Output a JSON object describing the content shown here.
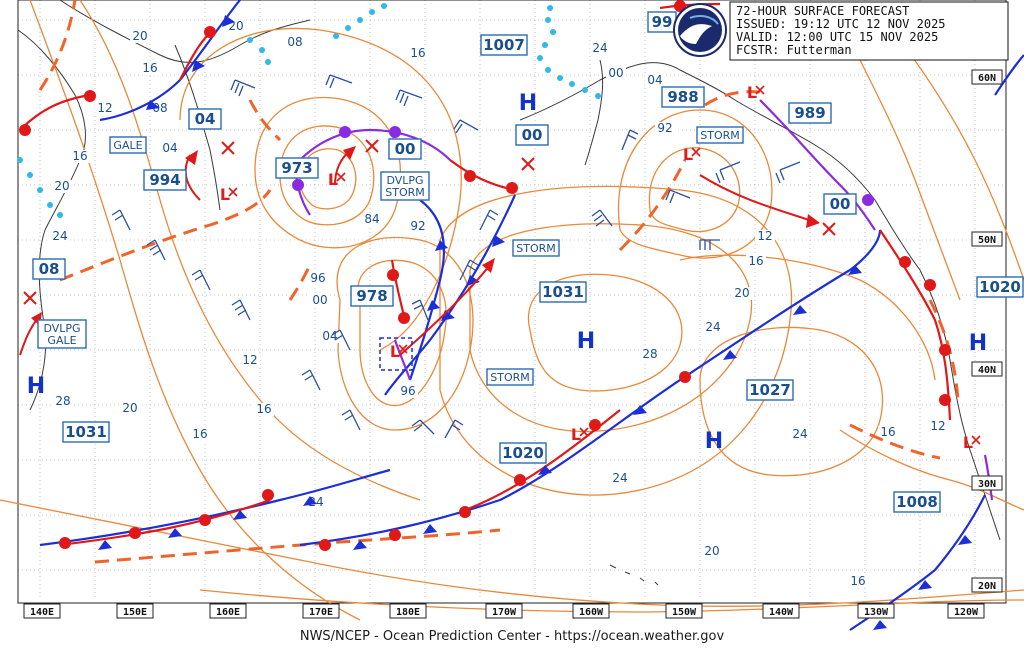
{
  "header": {
    "title": "72-HOUR SURFACE FORECAST",
    "issued": "ISSUED: 19:12 UTC 12 NOV 2025",
    "valid": "VALID:  12:00 UTC 15 NOV 2025",
    "forecaster": "FCSTR:  Futterman"
  },
  "footer": "NWS/NCEP - Ocean Prediction Center - https://ocean.weather.gov",
  "logo": "noaa-logo",
  "lon_labels": [
    "140E",
    "150E",
    "160E",
    "170E",
    "180E",
    "170W",
    "160W",
    "150W",
    "140W",
    "130W",
    "120W"
  ],
  "lat_labels": [
    "60N",
    "50N",
    "40N",
    "30N",
    "20N"
  ],
  "pressure_boxes": [
    "1007",
    "994",
    "973",
    "978",
    "1031",
    "1031",
    "988",
    "989",
    "1020",
    "1027",
    "1020",
    "1008",
    "04",
    "00",
    "00",
    "00",
    "08",
    "99"
  ],
  "warning_labels": [
    "GALE",
    "DVLPG STORM",
    "STORM",
    "STORM",
    "STORM",
    "DVLPG GALE"
  ],
  "high_labels": [
    "H",
    "H",
    "H",
    "H",
    "H"
  ],
  "low_labels": [
    "L",
    "L",
    "L",
    "L",
    "L",
    "L",
    "L"
  ],
  "isobar_labels": [
    "20",
    "16",
    "12",
    "08",
    "04",
    "16",
    "20",
    "24",
    "84",
    "92",
    "96",
    "00",
    "04",
    "96",
    "92",
    "12",
    "16",
    "20",
    "24",
    "28",
    "24",
    "20",
    "24",
    "16",
    "12",
    "16",
    "20",
    "24",
    "16",
    "08",
    "12",
    "00",
    "04",
    "28",
    "24",
    "20",
    "16",
    "12",
    "16"
  ],
  "colors": {
    "isobar": "#e8893a",
    "cold_front": "#1c2fd6",
    "warm_front": "#e01818",
    "occluded_front": "#8a2be2",
    "trough": "#f0642a",
    "ice": "#30b8e8",
    "text": "#1a4f8e"
  }
}
